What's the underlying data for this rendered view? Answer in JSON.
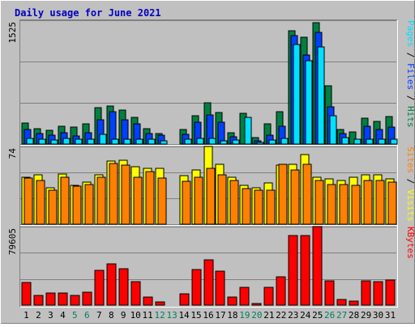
{
  "chart_data": {
    "title": "Daily usage for June 2021",
    "type": "bar",
    "days": [
      "1",
      "2",
      "3",
      "4",
      "5",
      "6",
      "7",
      "8",
      "9",
      "10",
      "11",
      "12",
      "13",
      "14",
      "15",
      "16",
      "17",
      "18",
      "19",
      "20",
      "21",
      "22",
      "23",
      "24",
      "25",
      "26",
      "27",
      "28",
      "29",
      "30",
      "31"
    ],
    "weekend_days": [
      "5",
      "6",
      "12",
      "13",
      "19",
      "20",
      "26",
      "27"
    ],
    "colors": {
      "title": "#0000c0",
      "background": "#c0c0c0",
      "hits": "#008040",
      "files": "#0040ff",
      "pages": "#00e0ff",
      "visits": "#ffff00",
      "sites": "#ff8000",
      "kbytes": "#ff0000",
      "weekend_label": "#00805c",
      "weekday_label": "#000000"
    },
    "panels": [
      {
        "id": "hits",
        "ymax_label": "1525",
        "ymax": 1525,
        "axis_label": [
          {
            "text": "Pages",
            "color": "#00e0ff"
          },
          {
            "text": " / ",
            "color": "#000000"
          },
          {
            "text": "Files",
            "color": "#0040ff"
          },
          {
            "text": " / ",
            "color": "#000000"
          },
          {
            "text": "Hits",
            "color": "#008040"
          }
        ],
        "series": [
          {
            "name": "Hits",
            "color": "#008040",
            "values": [
              255,
              190,
              165,
              215,
              205,
              245,
              445,
              470,
              415,
              325,
              185,
              125,
              0,
              180,
              345,
              505,
              385,
              140,
              375,
              80,
              245,
              395,
              1395,
              1320,
              1495,
              720,
              175,
              145,
              320,
              280,
              335
            ]
          },
          {
            "name": "Files",
            "color": "#0040ff",
            "values": [
              180,
              125,
              110,
              140,
              100,
              135,
              295,
              395,
              295,
              250,
              125,
              105,
              0,
              120,
              270,
              355,
              270,
              90,
              0,
              40,
              110,
              220,
              1335,
              1095,
              1375,
              460,
              125,
              0,
              220,
              180,
              205
            ]
          },
          {
            "name": "Pages",
            "color": "#00e0ff",
            "values": [
              65,
              60,
              50,
              70,
              60,
              55,
              120,
              60,
              60,
              55,
              60,
              35,
              0,
              55,
              65,
              65,
              40,
              45,
              330,
              20,
              45,
              65,
              1230,
              1030,
              1195,
              345,
              75,
              60,
              55,
              55,
              60
            ]
          }
        ]
      },
      {
        "id": "visits",
        "ymax_label": "74",
        "ymax": 74,
        "axis_label": [
          {
            "text": "Sites",
            "color": "#ff8000"
          },
          {
            "text": " / ",
            "color": "#000000"
          },
          {
            "text": "Visits",
            "color": "#ffff00"
          }
        ],
        "series": [
          {
            "name": "Visits",
            "color": "#ffff00",
            "values": [
              45,
              47,
              35,
              48,
              37,
              40,
              47,
              60,
              61,
              55,
              53,
              53,
              0,
              46,
              52,
              74,
              57,
              45,
              37,
              35,
              39,
              56,
              57,
              66,
              45,
              43,
              42,
              45,
              47,
              47,
              43
            ]
          },
          {
            "name": "Sites",
            "color": "#ff8000",
            "values": [
              44,
              42,
              32,
              45,
              36,
              38,
              45,
              58,
              56,
              45,
              50,
              44,
              0,
              41,
              45,
              53,
              47,
              42,
              34,
              32,
              32,
              57,
              52,
              57,
              42,
              38,
              38,
              37,
              42,
              42,
              40
            ]
          }
        ]
      },
      {
        "id": "kbytes",
        "ymax_label": "79605",
        "ymax": 79605,
        "axis_label": [
          {
            "text": "KBytes",
            "color": "#ff0000"
          }
        ],
        "series": [
          {
            "name": "KBytes",
            "color": "#ff0000",
            "values": [
              22700,
              9500,
              12000,
              12300,
              10000,
              13000,
              35300,
              42000,
              37100,
              23800,
              8300,
              3200,
              0,
              11500,
              35900,
              46000,
              34500,
              8600,
              17700,
              2000,
              18100,
              28800,
              70700,
              70800,
              79605,
              24300,
              5400,
              4000,
              24900,
              24000,
              25400
            ]
          }
        ]
      }
    ]
  }
}
